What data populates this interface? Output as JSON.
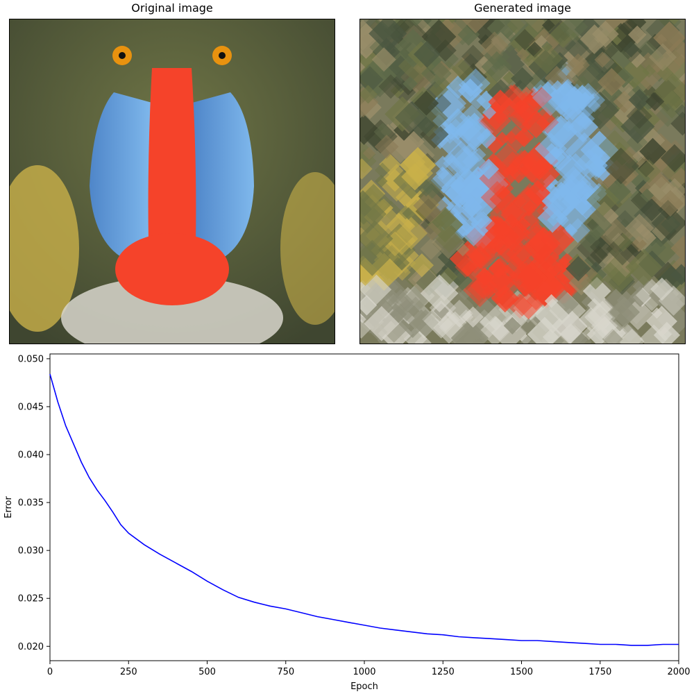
{
  "panels": [
    {
      "title": "Original image",
      "subject": "mandrill-face-photo"
    },
    {
      "title": "Generated image",
      "subject": "mandrill-face-mosaic-of-translucent-diamonds"
    }
  ],
  "colors": {
    "line": "#0000ff",
    "fur_dark": "#3f4630",
    "fur_olive": "#6f7546",
    "fur_yellow": "#c9b04a",
    "cheek_blue": "#7fb8ec",
    "cheek_blue_dark": "#4f86c9",
    "nose_red": "#f5432a",
    "eye_orange": "#e8920f",
    "beard_white": "#d8d6cc"
  },
  "chart_data": {
    "type": "line",
    "xlabel": "Epoch",
    "ylabel": "Error",
    "xlim": [
      0,
      2000
    ],
    "ylim": [
      0.0185,
      0.0505
    ],
    "xticks": [
      0,
      250,
      500,
      750,
      1000,
      1250,
      1500,
      1750,
      2000
    ],
    "xtick_labels": [
      "0",
      "250",
      "500",
      "750",
      "1000",
      "1250",
      "1500",
      "1750",
      "2000"
    ],
    "yticks": [
      0.02,
      0.025,
      0.03,
      0.035,
      0.04,
      0.045,
      0.05
    ],
    "ytick_labels": [
      "0.020",
      "0.025",
      "0.030",
      "0.035",
      "0.040",
      "0.045",
      "0.050"
    ],
    "grid": false,
    "series": [
      {
        "x": [
          0,
          25,
          50,
          75,
          100,
          125,
          150,
          175,
          200,
          225,
          250,
          300,
          350,
          400,
          450,
          500,
          550,
          600,
          650,
          700,
          750,
          800,
          850,
          900,
          950,
          1000,
          1050,
          1100,
          1150,
          1200,
          1250,
          1300,
          1350,
          1400,
          1450,
          1500,
          1550,
          1600,
          1650,
          1700,
          1750,
          1800,
          1850,
          1900,
          1950,
          2000
        ],
        "y": [
          0.0484,
          0.0455,
          0.043,
          0.0411,
          0.0392,
          0.0376,
          0.0363,
          0.0352,
          0.034,
          0.0327,
          0.0318,
          0.0306,
          0.0296,
          0.0287,
          0.0278,
          0.0268,
          0.0259,
          0.0251,
          0.0246,
          0.0242,
          0.0239,
          0.0235,
          0.0231,
          0.0228,
          0.0225,
          0.0222,
          0.0219,
          0.0217,
          0.0215,
          0.0213,
          0.0212,
          0.021,
          0.0209,
          0.0208,
          0.0207,
          0.0206,
          0.0206,
          0.0205,
          0.0204,
          0.0203,
          0.0202,
          0.0202,
          0.0201,
          0.0201,
          0.0202,
          0.0202
        ]
      }
    ]
  }
}
